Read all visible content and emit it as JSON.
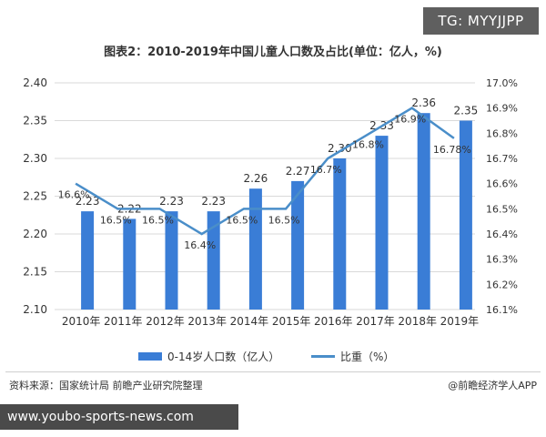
{
  "badge_tg": "TG: MYYJJPP",
  "badge_url": "www.youbo-sports-news.com",
  "source": "资料来源：国家统计局 前瞻产业研究院整理",
  "credit": "@前瞻经济学人APP",
  "colors": {
    "bar": "#3a7dd6",
    "line": "#4a8ec9",
    "grid": "#d9d9d9",
    "text": "#333333"
  },
  "chart_data": {
    "type": "bar",
    "title": "图表2：2010-2019年中国儿童人口数及占比(单位：亿人，%)",
    "categories": [
      "2010年",
      "2011年",
      "2012年",
      "2013年",
      "2014年",
      "2015年",
      "2016年",
      "2017年",
      "2018年",
      "2019年"
    ],
    "series": [
      {
        "name": "0-14岁人口数（亿人）",
        "type": "bar",
        "axis": "left",
        "values": [
          2.23,
          2.22,
          2.23,
          2.23,
          2.26,
          2.27,
          2.3,
          2.33,
          2.36,
          2.35
        ],
        "labels": [
          "2.23",
          "2.22",
          "2.23",
          "2.23",
          "2.26",
          "2.27",
          "2.30",
          "2.33",
          "2.36",
          "2.35"
        ]
      },
      {
        "name": "比重（%）",
        "type": "line",
        "axis": "right",
        "values": [
          16.6,
          16.5,
          16.5,
          16.4,
          16.5,
          16.5,
          16.7,
          16.8,
          16.9,
          16.78
        ],
        "labels": [
          "16.6%",
          "16.5%",
          "16.5%",
          "16.4%",
          "16.5%",
          "16.5%",
          "16.7%",
          "16.8%",
          "16.9%",
          "16.78%"
        ]
      }
    ],
    "y_left": {
      "min": 2.1,
      "max": 2.4,
      "ticks": [
        "2.10",
        "2.15",
        "2.20",
        "2.25",
        "2.30",
        "2.35",
        "2.40"
      ]
    },
    "y_right": {
      "min": 16.1,
      "max": 17.0,
      "ticks": [
        "16.1%",
        "16.2%",
        "16.3%",
        "16.4%",
        "16.5%",
        "16.6%",
        "16.7%",
        "16.8%",
        "16.9%",
        "17.0%"
      ]
    },
    "grid": true,
    "legend": "bottom"
  }
}
